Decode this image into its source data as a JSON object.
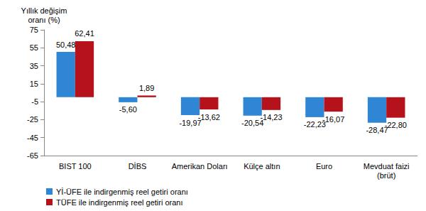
{
  "chart_data": {
    "type": "bar",
    "y_label": "Yıllık değişim\noranı (%)",
    "categories": [
      "BIST 100",
      "DİBS",
      "Amerikan Doları",
      "Külçe altın",
      "Euro",
      "Mevduat faizi\n(brüt)"
    ],
    "series": [
      {
        "name": "Yİ-ÜFE ile indirgenmiş reel getiri oranı",
        "color": "#2e86d4",
        "values": [
          50.48,
          -5.6,
          -19.97,
          -20.54,
          -22.23,
          -28.47
        ],
        "value_labels": [
          "50,48",
          "-5,60",
          "-19,97",
          "-20,54",
          "-22,23",
          "-28,47"
        ]
      },
      {
        "name": "TÜFE ile indirgenmiş reel getiri oranı",
        "color": "#b5121b",
        "values": [
          62.41,
          1.89,
          -13.62,
          -14.23,
          -16.07,
          -22.8
        ],
        "value_labels": [
          "62,41",
          "1,89",
          "-13,62",
          "-14,23",
          "-16,07",
          "-22,80"
        ]
      }
    ],
    "ylim": [
      -65,
      75
    ],
    "yticks": [
      -65,
      -45,
      -25,
      -5,
      15,
      35,
      55,
      75
    ],
    "grid": false,
    "legend": "bottom",
    "data_labels": true
  }
}
